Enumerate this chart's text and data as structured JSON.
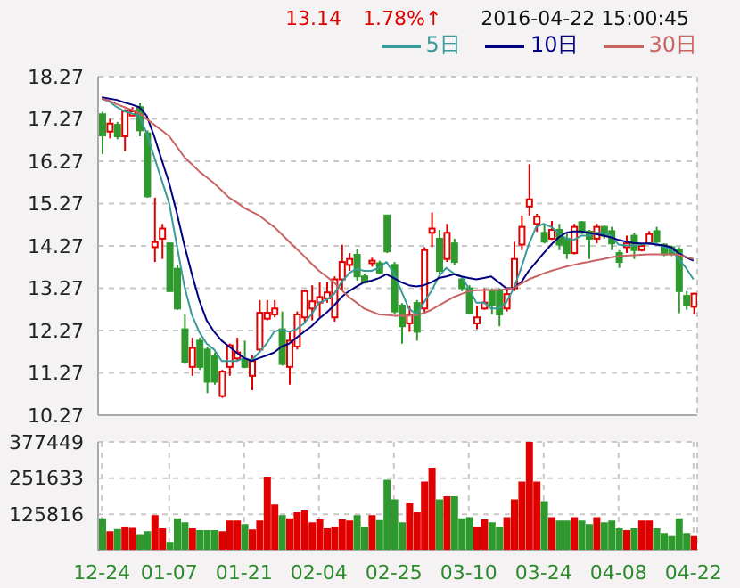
{
  "chart_data": [
    {
      "type": "candlestick",
      "annotations": [
        "13.14",
        "1.78%↑",
        "2016-04-22 15:00:45"
      ],
      "legend": "top right",
      "grid": true,
      "tick_labels": "y",
      "ylim": [
        10.27,
        18.27
      ],
      "yticks": [
        10.27,
        11.27,
        12.27,
        13.27,
        14.27,
        15.27,
        16.27,
        17.27,
        18.27
      ],
      "ohlc": [
        [
          17.38,
          17.44,
          16.44,
          16.88
        ],
        [
          16.97,
          17.27,
          16.81,
          17.16
        ],
        [
          17.13,
          17.2,
          16.79,
          16.86
        ],
        [
          16.86,
          17.5,
          16.51,
          17.45
        ],
        [
          17.35,
          17.55,
          17.34,
          17.45
        ],
        [
          17.55,
          17.64,
          16.86,
          17.0
        ],
        [
          16.93,
          17.0,
          15.41,
          15.44
        ],
        [
          14.24,
          15.41,
          13.89,
          14.36
        ],
        [
          14.44,
          14.79,
          13.96,
          14.68
        ],
        [
          14.33,
          14.33,
          13.2,
          13.2
        ],
        [
          13.73,
          13.82,
          12.76,
          12.79
        ],
        [
          12.3,
          12.65,
          11.48,
          11.52
        ],
        [
          11.41,
          12.1,
          11.2,
          11.86
        ],
        [
          12.03,
          12.1,
          11.34,
          11.41
        ],
        [
          11.82,
          11.89,
          10.79,
          11.06
        ],
        [
          11.66,
          11.75,
          10.99,
          11.06
        ],
        [
          10.72,
          11.34,
          10.68,
          11.3
        ],
        [
          11.41,
          11.96,
          11.2,
          11.92
        ],
        [
          11.61,
          12.1,
          11.55,
          11.75
        ],
        [
          11.57,
          12.03,
          11.38,
          11.41
        ],
        [
          11.2,
          11.68,
          10.86,
          11.55
        ],
        [
          11.82,
          12.99,
          11.75,
          12.69
        ],
        [
          12.55,
          12.99,
          12.51,
          12.69
        ],
        [
          12.65,
          12.99,
          12.58,
          12.79
        ],
        [
          12.3,
          12.72,
          11.44,
          11.48
        ],
        [
          11.41,
          12.24,
          10.99,
          12.03
        ],
        [
          11.89,
          12.72,
          11.82,
          12.65
        ],
        [
          12.58,
          13.2,
          12.44,
          13.2
        ],
        [
          12.79,
          13.34,
          12.51,
          12.96
        ],
        [
          12.93,
          13.41,
          12.58,
          13.06
        ],
        [
          13.03,
          13.41,
          12.93,
          13.17
        ],
        [
          12.58,
          13.55,
          12.48,
          13.48
        ],
        [
          13.48,
          14.3,
          13.2,
          13.89
        ],
        [
          13.82,
          14.1,
          13.68,
          13.96
        ],
        [
          14.06,
          14.2,
          13.45,
          13.55
        ],
        [
          13.55,
          13.62,
          13.38,
          13.41
        ],
        [
          13.86,
          13.99,
          13.78,
          13.92
        ],
        [
          13.86,
          13.92,
          13.61,
          13.64
        ],
        [
          14.99,
          14.99,
          14.1,
          14.14
        ],
        [
          13.82,
          13.89,
          12.65,
          12.72
        ],
        [
          12.86,
          12.92,
          11.96,
          12.37
        ],
        [
          12.44,
          12.86,
          12.24,
          12.65
        ],
        [
          12.92,
          12.99,
          12.03,
          12.24
        ],
        [
          12.79,
          14.24,
          12.65,
          14.17
        ],
        [
          14.58,
          15.06,
          14.24,
          14.68
        ],
        [
          14.44,
          14.65,
          13.61,
          13.68
        ],
        [
          13.96,
          14.79,
          13.89,
          14.58
        ],
        [
          14.33,
          14.44,
          13.82,
          13.89
        ],
        [
          13.48,
          13.55,
          13.2,
          13.27
        ],
        [
          13.27,
          13.34,
          12.65,
          12.69
        ],
        [
          12.44,
          12.86,
          12.3,
          12.58
        ],
        [
          12.79,
          13.27,
          12.76,
          12.93
        ],
        [
          13.2,
          13.27,
          12.65,
          12.86
        ],
        [
          13.2,
          13.27,
          12.37,
          12.65
        ],
        [
          12.79,
          13.27,
          12.72,
          13.13
        ],
        [
          13.27,
          14.37,
          13.2,
          13.96
        ],
        [
          14.3,
          14.99,
          14.17,
          14.72
        ],
        [
          15.2,
          16.2,
          14.99,
          15.37
        ],
        [
          14.79,
          15.03,
          14.6,
          14.96
        ],
        [
          14.58,
          14.79,
          14.33,
          14.37
        ],
        [
          14.44,
          14.86,
          14.41,
          14.65
        ],
        [
          14.65,
          14.79,
          14.17,
          14.3
        ],
        [
          14.44,
          14.58,
          13.96,
          14.1
        ],
        [
          14.1,
          14.79,
          14.07,
          14.72
        ],
        [
          14.83,
          14.86,
          14.55,
          14.58
        ],
        [
          14.61,
          14.65,
          13.96,
          14.44
        ],
        [
          14.44,
          14.79,
          14.33,
          14.72
        ],
        [
          14.72,
          14.76,
          14.44,
          14.51
        ],
        [
          14.62,
          14.72,
          14.17,
          14.33
        ],
        [
          14.1,
          14.17,
          13.75,
          13.89
        ],
        [
          14.24,
          14.51,
          14.1,
          14.33
        ],
        [
          14.51,
          14.58,
          13.96,
          14.17
        ],
        [
          14.17,
          14.33,
          14.14,
          14.27
        ],
        [
          14.33,
          14.62,
          14.3,
          14.55
        ],
        [
          14.62,
          14.72,
          14.34,
          14.37
        ],
        [
          14.3,
          14.33,
          14.03,
          14.07
        ],
        [
          14.24,
          14.28,
          14.03,
          14.1
        ],
        [
          14.17,
          14.24,
          12.68,
          13.2
        ],
        [
          13.09,
          13.2,
          12.76,
          12.86
        ],
        [
          12.83,
          13.16,
          12.65,
          13.14
        ]
      ],
      "colors": [
        "#2e9a2e",
        "#e00000",
        "#2e9a2e",
        "#e00000",
        "#e00000",
        "#2e9a2e",
        "#2e9a2e",
        "#e00000",
        "#e00000",
        "#2e9a2e",
        "#2e9a2e",
        "#2e9a2e",
        "#e00000",
        "#2e9a2e",
        "#2e9a2e",
        "#2e9a2e",
        "#e00000",
        "#e00000",
        "#e00000",
        "#2e9a2e",
        "#e00000",
        "#e00000",
        "#e00000",
        "#e00000",
        "#2e9a2e",
        "#e00000",
        "#e00000",
        "#e00000",
        "#e00000",
        "#e00000",
        "#e00000",
        "#e00000",
        "#e00000",
        "#e00000",
        "#2e9a2e",
        "#2e9a2e",
        "#e00000",
        "#2e9a2e",
        "#2e9a2e",
        "#2e9a2e",
        "#2e9a2e",
        "#e00000",
        "#2e9a2e",
        "#e00000",
        "#e00000",
        "#2e9a2e",
        "#e00000",
        "#2e9a2e",
        "#2e9a2e",
        "#2e9a2e",
        "#e00000",
        "#e00000",
        "#2e9a2e",
        "#2e9a2e",
        "#e00000",
        "#e00000",
        "#e00000",
        "#e00000",
        "#e00000",
        "#2e9a2e",
        "#e00000",
        "#2e9a2e",
        "#2e9a2e",
        "#e00000",
        "#2e9a2e",
        "#2e9a2e",
        "#e00000",
        "#2e9a2e",
        "#2e9a2e",
        "#2e9a2e",
        "#e00000",
        "#2e9a2e",
        "#e00000",
        "#e00000",
        "#2e9a2e",
        "#2e9a2e",
        "#2e9a2e",
        "#2e9a2e",
        "#2e9a2e",
        "#e00000"
      ],
      "series": [
        {
          "type": "line",
          "name": "5日",
          "color": "#3a9a9a",
          "values": [
            17.75,
            17.68,
            17.55,
            17.45,
            17.4,
            17.34,
            16.93,
            16.37,
            15.82,
            15.27,
            14.3,
            13.34,
            12.65,
            12.24,
            11.96,
            11.82,
            11.55,
            11.55,
            11.55,
            11.62,
            11.57,
            11.75,
            11.96,
            12.24,
            12.3,
            12.24,
            12.3,
            12.44,
            12.65,
            12.93,
            12.99,
            13.13,
            13.41,
            13.62,
            13.73,
            13.68,
            13.68,
            13.75,
            13.89,
            13.62,
            13.2,
            12.79,
            12.65,
            12.93,
            13.2,
            13.55,
            13.75,
            13.62,
            13.55,
            13.27,
            12.93,
            12.93,
            12.79,
            12.79,
            12.93,
            13.27,
            13.75,
            14.3,
            14.72,
            14.79,
            14.72,
            14.58,
            14.44,
            14.41,
            14.51,
            14.51,
            14.58,
            14.58,
            14.51,
            14.3,
            14.28,
            14.28,
            14.3,
            14.33,
            14.33,
            14.24,
            14.2,
            13.96,
            13.75,
            13.48
          ]
        },
        {
          "type": "line",
          "name": "10日",
          "color": "#000080",
          "values": [
            17.78,
            17.75,
            17.72,
            17.66,
            17.61,
            17.55,
            17.34,
            16.86,
            16.3,
            15.75,
            15.06,
            14.3,
            13.62,
            12.99,
            12.51,
            12.24,
            12.03,
            11.89,
            11.75,
            11.62,
            11.55,
            11.62,
            11.68,
            11.75,
            11.89,
            11.96,
            12.1,
            12.24,
            12.37,
            12.55,
            12.69,
            12.86,
            13.06,
            13.2,
            13.31,
            13.41,
            13.45,
            13.51,
            13.6,
            13.51,
            13.41,
            13.34,
            13.31,
            13.34,
            13.41,
            13.51,
            13.55,
            13.6,
            13.55,
            13.51,
            13.48,
            13.51,
            13.55,
            13.41,
            13.27,
            13.27,
            13.41,
            13.68,
            13.89,
            14.1,
            14.3,
            14.47,
            14.58,
            14.61,
            14.61,
            14.58,
            14.55,
            14.51,
            14.47,
            14.41,
            14.37,
            14.34,
            14.33,
            14.33,
            14.3,
            14.28,
            14.24,
            14.1,
            14.0,
            13.92
          ]
        },
        {
          "type": "line",
          "name": "30日",
          "color": "#c86464",
          "values": [
            17.75,
            17.7,
            17.62,
            17.55,
            17.48,
            17.41,
            17.27,
            17.13,
            17.0,
            16.86,
            16.62,
            16.37,
            16.2,
            16.03,
            15.89,
            15.75,
            15.58,
            15.41,
            15.3,
            15.17,
            15.08,
            14.99,
            14.85,
            14.72,
            14.55,
            14.37,
            14.2,
            14.03,
            13.85,
            13.68,
            13.55,
            13.41,
            13.23,
            13.06,
            12.93,
            12.79,
            12.72,
            12.65,
            12.64,
            12.62,
            12.62,
            12.62,
            12.63,
            12.68,
            12.76,
            12.86,
            12.96,
            13.06,
            13.13,
            13.2,
            13.22,
            13.23,
            13.23,
            13.23,
            13.25,
            13.27,
            13.38,
            13.48,
            13.55,
            13.62,
            13.68,
            13.73,
            13.78,
            13.82,
            13.86,
            13.89,
            13.93,
            13.96,
            14.0,
            14.03,
            14.04,
            14.05,
            14.06,
            14.07,
            14.07,
            14.07,
            14.07,
            14.06,
            14.01,
            13.96
          ]
        }
      ]
    },
    {
      "type": "bar",
      "grid": true,
      "ylim": [
        0,
        377449
      ],
      "yticks": [
        125816,
        251633,
        377449
      ],
      "categories": [
        "12-24",
        null,
        null,
        null,
        null,
        null,
        null,
        null,
        null,
        "01-07",
        null,
        null,
        null,
        null,
        null,
        null,
        null,
        null,
        null,
        "01-21",
        null,
        null,
        null,
        null,
        null,
        null,
        null,
        null,
        null,
        "02-04",
        null,
        null,
        null,
        null,
        null,
        null,
        null,
        null,
        null,
        "02-25",
        null,
        null,
        null,
        null,
        null,
        null,
        null,
        null,
        null,
        "03-10",
        null,
        null,
        null,
        null,
        null,
        null,
        null,
        null,
        null,
        "03-24",
        null,
        null,
        null,
        null,
        null,
        null,
        null,
        null,
        null,
        "04-08",
        null,
        null,
        null,
        null,
        null,
        null,
        null,
        null,
        null,
        "04-22"
      ],
      "values": [
        109000,
        64000,
        72000,
        80000,
        76000,
        54000,
        64000,
        120000,
        74000,
        27000,
        109000,
        95000,
        74000,
        68000,
        68000,
        68000,
        64000,
        101000,
        101000,
        89000,
        70000,
        101000,
        254000,
        157000,
        120000,
        109000,
        130000,
        136000,
        95000,
        105000,
        74000,
        80000,
        105000,
        101000,
        120000,
        80000,
        120000,
        103000,
        243000,
        175000,
        95000,
        161000,
        130000,
        237000,
        285000,
        175000,
        186000,
        186000,
        109000,
        113000,
        80000,
        105000,
        95000,
        80000,
        113000,
        175000,
        237000,
        377000,
        237000,
        169000,
        113000,
        101000,
        101000,
        113000,
        101000,
        89000,
        113000,
        95000,
        101000,
        74000,
        68000,
        74000,
        101000,
        101000,
        74000,
        58000,
        47000,
        109000,
        58000,
        47000
      ],
      "colors": [
        "#2e9a2e",
        "#e00000",
        "#2e9a2e",
        "#e00000",
        "#e00000",
        "#2e9a2e",
        "#2e9a2e",
        "#e00000",
        "#e00000",
        "#2e9a2e",
        "#2e9a2e",
        "#2e9a2e",
        "#e00000",
        "#2e9a2e",
        "#2e9a2e",
        "#2e9a2e",
        "#e00000",
        "#e00000",
        "#e00000",
        "#2e9a2e",
        "#e00000",
        "#e00000",
        "#e00000",
        "#e00000",
        "#2e9a2e",
        "#e00000",
        "#e00000",
        "#e00000",
        "#e00000",
        "#e00000",
        "#e00000",
        "#e00000",
        "#e00000",
        "#e00000",
        "#2e9a2e",
        "#2e9a2e",
        "#e00000",
        "#2e9a2e",
        "#2e9a2e",
        "#2e9a2e",
        "#2e9a2e",
        "#e00000",
        "#e00000",
        "#e00000",
        "#e00000",
        "#2e9a2e",
        "#e00000",
        "#2e9a2e",
        "#2e9a2e",
        "#2e9a2e",
        "#e00000",
        "#e00000",
        "#2e9a2e",
        "#2e9a2e",
        "#e00000",
        "#e00000",
        "#e00000",
        "#e00000",
        "#e00000",
        "#2e9a2e",
        "#e00000",
        "#2e9a2e",
        "#2e9a2e",
        "#e00000",
        "#2e9a2e",
        "#2e9a2e",
        "#e00000",
        "#2e9a2e",
        "#2e9a2e",
        "#2e9a2e",
        "#e00000",
        "#2e9a2e",
        "#e00000",
        "#e00000",
        "#2e9a2e",
        "#2e9a2e",
        "#2e9a2e",
        "#2e9a2e",
        "#2e9a2e",
        "#e00000"
      ]
    }
  ]
}
